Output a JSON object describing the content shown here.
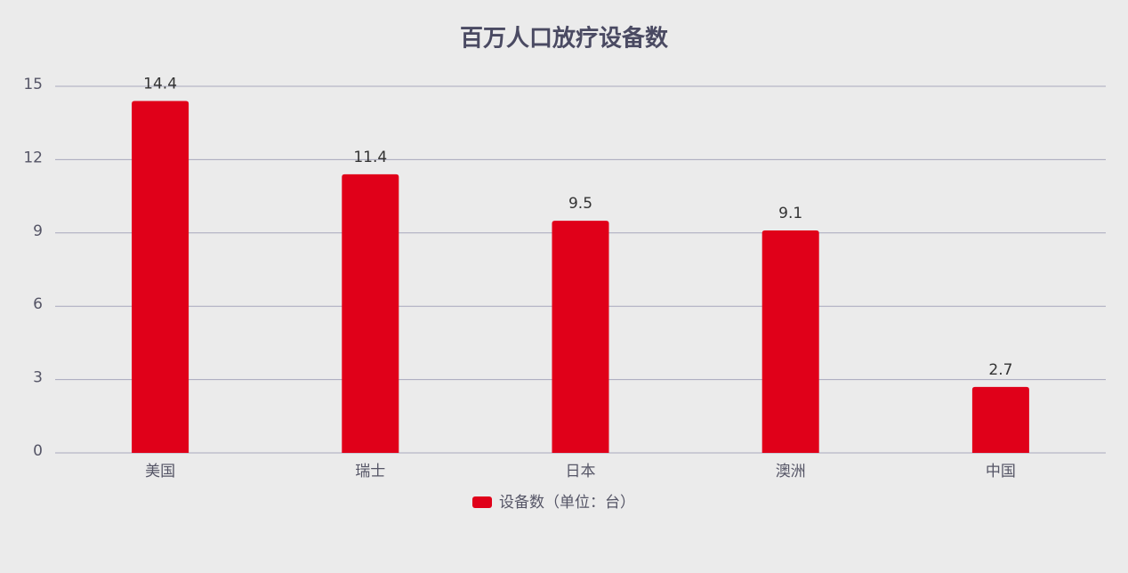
{
  "chart_data": {
    "type": "bar",
    "title": "百万人口放疗设备数",
    "categories": [
      "美国",
      "瑞士",
      "日本",
      "澳洲",
      "中国"
    ],
    "series": [
      {
        "name": "设备数（单位：台）",
        "color": "#e00019",
        "values": [
          14.4,
          11.4,
          9.5,
          9.1,
          2.7
        ]
      }
    ],
    "ylim": [
      0,
      15
    ],
    "yticks": [
      0,
      3,
      6,
      9,
      12,
      15
    ],
    "grid": true,
    "legend": "bottom"
  }
}
